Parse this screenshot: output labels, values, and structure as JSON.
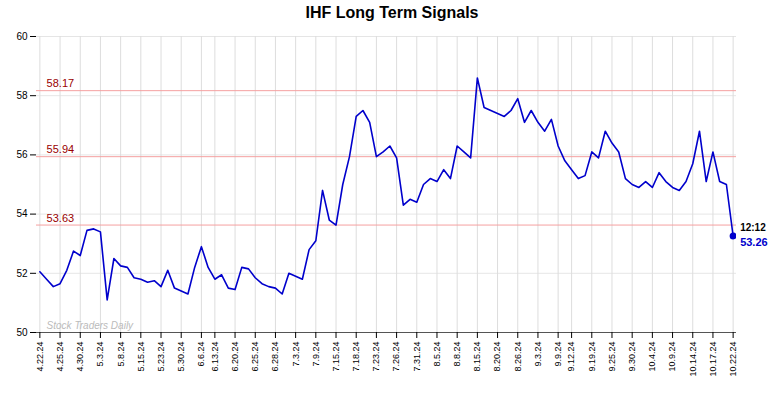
{
  "chart_data": {
    "type": "line",
    "title": "IHF Long Term Signals",
    "categories": [
      "4.22.24",
      null,
      null,
      "4.25.24",
      null,
      null,
      "4.30.24",
      null,
      null,
      "5.3.24",
      null,
      null,
      "5.8.24",
      null,
      null,
      "5.15.24",
      null,
      null,
      "5.23.24",
      null,
      null,
      "5.30.24",
      null,
      null,
      "6.6.24",
      null,
      "6.13.24",
      null,
      null,
      "6.20.24",
      null,
      null,
      "6.25.24",
      null,
      null,
      "6.28.24",
      null,
      null,
      "7.3.24",
      null,
      null,
      "7.9.24",
      null,
      null,
      "7.15.24",
      null,
      null,
      "7.18.24",
      null,
      null,
      "7.23.24",
      null,
      null,
      "7.26.24",
      null,
      null,
      "7.31.24",
      null,
      null,
      "8.5.24",
      null,
      null,
      "8.8.24",
      null,
      null,
      "8.15.24",
      null,
      null,
      "8.20.24",
      null,
      null,
      "8.26.24",
      null,
      null,
      "9.3.24",
      null,
      null,
      "9.9.24",
      null,
      "9.12.24",
      null,
      null,
      "9.19.24",
      null,
      null,
      "9.25.24",
      null,
      null,
      "9.30.24",
      null,
      null,
      "10.4.24",
      null,
      null,
      "10.9.24",
      null,
      null,
      "10.14.24",
      null,
      null,
      "10.17.24",
      null,
      null,
      "10.22.24"
    ],
    "values": [
      52.05,
      51.8,
      51.55,
      51.65,
      52.1,
      52.75,
      52.6,
      53.45,
      53.5,
      53.4,
      51.1,
      52.5,
      52.25,
      52.2,
      51.85,
      51.8,
      51.7,
      51.75,
      51.55,
      52.1,
      51.5,
      51.4,
      51.3,
      52.2,
      52.9,
      52.2,
      51.8,
      51.95,
      51.5,
      51.45,
      52.2,
      52.15,
      51.85,
      51.65,
      51.55,
      51.5,
      51.3,
      52.0,
      51.9,
      51.8,
      52.8,
      53.1,
      54.8,
      53.8,
      53.63,
      55.0,
      55.94,
      57.3,
      57.5,
      57.1,
      55.94,
      56.1,
      56.3,
      55.9,
      54.3,
      54.5,
      54.4,
      55.0,
      55.2,
      55.1,
      55.5,
      55.2,
      56.3,
      56.1,
      55.9,
      58.6,
      57.6,
      57.5,
      57.4,
      57.3,
      57.5,
      57.9,
      57.1,
      57.5,
      57.1,
      56.8,
      57.2,
      56.3,
      55.8,
      55.5,
      55.2,
      55.3,
      56.1,
      55.9,
      56.8,
      56.4,
      56.1,
      55.2,
      55.0,
      54.9,
      55.1,
      54.9,
      55.4,
      55.1,
      54.9,
      54.8,
      55.1,
      55.7,
      56.8,
      55.1,
      56.1,
      55.1,
      55.0,
      53.26
    ],
    "color": "#0000cc",
    "ylim": [
      50,
      60
    ],
    "yticks": [
      50,
      52,
      54,
      56,
      58,
      60
    ],
    "grid": true,
    "reference_lines": [
      {
        "value": 53.63,
        "label": "53.63",
        "color": "#f5a0a0",
        "label_color": "#990000"
      },
      {
        "value": 55.94,
        "label": "55.94",
        "color": "#f5a0a0",
        "label_color": "#990000"
      },
      {
        "value": 58.17,
        "label": "58.17",
        "color": "#f5a0a0",
        "label_color": "#990000"
      }
    ],
    "watermark": "Stock Traders Daily",
    "watermark_color": "#bbbbbb",
    "end_label": "12:12",
    "end_label_color": "#000000"
  }
}
